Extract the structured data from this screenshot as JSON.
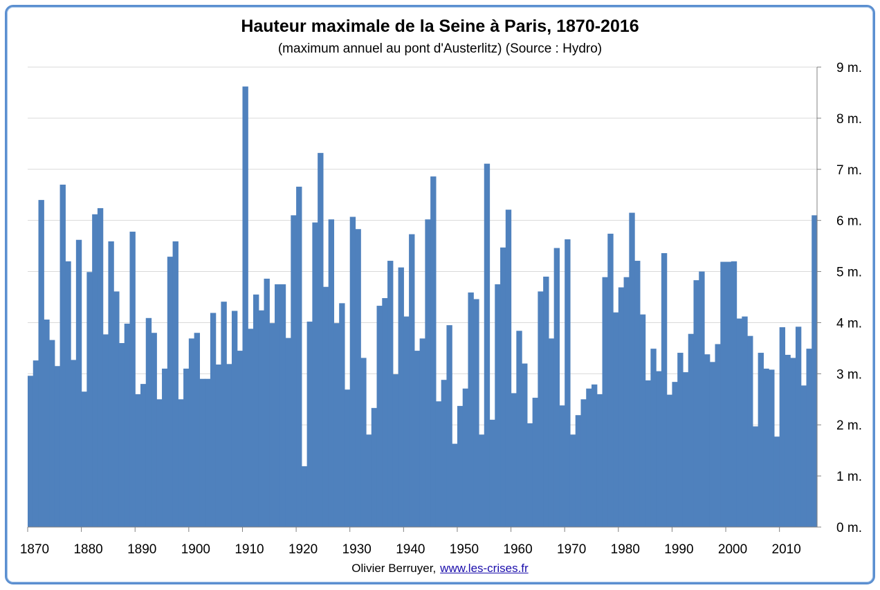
{
  "title": "Hauteur maximale de la Seine à Paris, 1870-2016",
  "subtitle": "(maximum annuel au pont d'Austerlitz) (Source : Hydro)",
  "credit": {
    "author": "Olivier Berruyer,",
    "link": "www.les-crises.fr"
  },
  "colors": {
    "bar": "#4f81bd",
    "frame": "#5b8fd0",
    "grid": "#d9d9d9"
  },
  "chart_data": {
    "type": "bar",
    "title": "Hauteur maximale de la Seine à Paris, 1870-2016",
    "subtitle": "(maximum annuel au pont d'Austerlitz) (Source : Hydro)",
    "xlabel": "",
    "ylabel": "",
    "ylim": [
      0,
      9
    ],
    "y_unit": "m.",
    "y_ticks": [
      "0 m.",
      "1 m.",
      "2 m.",
      "3 m.",
      "4 m.",
      "5 m.",
      "6 m.",
      "7 m.",
      "8 m.",
      "9 m."
    ],
    "x_ticks": [
      "1870",
      "1880",
      "1890",
      "1900",
      "1910",
      "1920",
      "1930",
      "1940",
      "1950",
      "1960",
      "1970",
      "1980",
      "1990",
      "2000",
      "2010"
    ],
    "grid": "horizontal",
    "y_axis_side": "right",
    "years": [
      1870,
      1871,
      1872,
      1873,
      1874,
      1875,
      1876,
      1877,
      1878,
      1879,
      1880,
      1881,
      1882,
      1883,
      1884,
      1885,
      1886,
      1887,
      1888,
      1889,
      1890,
      1891,
      1892,
      1893,
      1894,
      1895,
      1896,
      1897,
      1898,
      1899,
      1900,
      1901,
      1902,
      1903,
      1904,
      1905,
      1906,
      1907,
      1908,
      1909,
      1910,
      1911,
      1912,
      1913,
      1914,
      1915,
      1916,
      1917,
      1918,
      1919,
      1920,
      1921,
      1922,
      1923,
      1924,
      1925,
      1926,
      1927,
      1928,
      1929,
      1930,
      1931,
      1932,
      1933,
      1934,
      1935,
      1936,
      1937,
      1938,
      1939,
      1940,
      1941,
      1942,
      1943,
      1944,
      1945,
      1946,
      1947,
      1948,
      1949,
      1950,
      1951,
      1952,
      1953,
      1954,
      1955,
      1956,
      1957,
      1958,
      1959,
      1960,
      1961,
      1962,
      1963,
      1964,
      1965,
      1966,
      1967,
      1968,
      1969,
      1970,
      1971,
      1972,
      1973,
      1974,
      1975,
      1976,
      1977,
      1978,
      1979,
      1980,
      1981,
      1982,
      1983,
      1984,
      1985,
      1986,
      1987,
      1988,
      1989,
      1990,
      1991,
      1992,
      1993,
      1994,
      1995,
      1996,
      1997,
      1998,
      1999,
      2000,
      2001,
      2002,
      2003,
      2004,
      2005,
      2006,
      2007,
      2008,
      2009,
      2010,
      2011,
      2012,
      2013,
      2014,
      2015,
      2016
    ],
    "values": [
      2.96,
      3.26,
      6.4,
      4.06,
      3.66,
      3.15,
      6.7,
      5.2,
      3.27,
      5.62,
      2.65,
      4.99,
      6.12,
      6.24,
      3.77,
      5.59,
      4.61,
      3.6,
      3.98,
      5.78,
      2.6,
      2.8,
      4.09,
      3.8,
      2.5,
      3.1,
      5.29,
      5.59,
      2.5,
      3.1,
      3.69,
      3.8,
      2.9,
      2.9,
      4.19,
      3.18,
      4.41,
      3.19,
      4.23,
      3.45,
      8.62,
      3.88,
      4.55,
      4.24,
      4.86,
      3.99,
      4.75,
      4.75,
      3.7,
      6.1,
      6.66,
      1.19,
      4.02,
      5.96,
      7.32,
      4.7,
      6.02,
      3.99,
      4.38,
      2.69,
      6.07,
      5.83,
      3.31,
      1.81,
      2.33,
      4.33,
      4.48,
      5.21,
      2.99,
      5.08,
      4.12,
      5.73,
      3.45,
      3.69,
      6.02,
      6.86,
      2.46,
      2.88,
      3.95,
      1.63,
      2.37,
      2.71,
      4.59,
      4.46,
      1.81,
      7.11,
      2.1,
      4.75,
      5.47,
      6.21,
      2.62,
      3.84,
      3.2,
      2.03,
      2.53,
      4.61,
      4.9,
      3.69,
      5.46,
      2.38,
      5.63,
      1.81,
      2.19,
      2.5,
      2.71,
      2.79,
      2.6,
      4.89,
      5.74,
      4.2,
      4.69,
      4.89,
      6.15,
      5.21,
      4.16,
      2.87,
      3.49,
      3.05,
      5.36,
      2.59,
      2.84,
      3.41,
      3.03,
      3.78,
      4.83,
      5.0,
      3.38,
      3.23,
      3.58,
      5.19,
      5.19,
      5.2,
      4.08,
      4.12,
      3.74,
      1.97,
      3.41,
      3.1,
      3.08,
      1.77,
      3.91,
      3.37,
      3.31,
      3.92,
      2.77,
      3.49,
      6.1
    ]
  }
}
